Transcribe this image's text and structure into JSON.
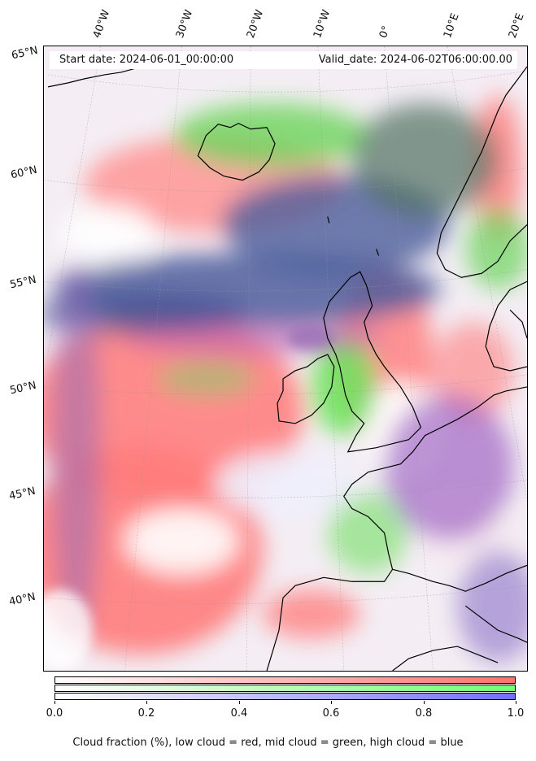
{
  "header": {
    "start_date": "Start date: 2024-06-01_00:00:00",
    "valid_date": "Valid_date: 2024-06-02T06:00:00.00"
  },
  "longitude_labels": [
    "40°W",
    "30°W",
    "20°W",
    "10°W",
    "0°",
    "10°E",
    "20°E"
  ],
  "latitude_labels": [
    "65°N",
    "60°N",
    "55°N",
    "50°N",
    "45°N",
    "40°N"
  ],
  "colorbar": {
    "ticks": [
      "0.0",
      "0.2",
      "0.4",
      "0.6",
      "0.8",
      "1.0"
    ],
    "tick_values": [
      0.0,
      0.2,
      0.4,
      0.6,
      0.8,
      1.0
    ],
    "low_color": "#ff7070",
    "mid_color": "#70ff70",
    "high_color": "#7070ff"
  },
  "caption": "Cloud fraction (%), low cloud = red, mid cloud = green, high cloud = blue"
}
